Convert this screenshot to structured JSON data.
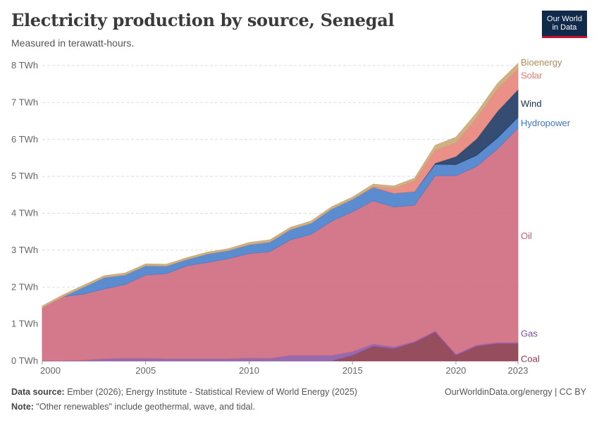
{
  "header": {
    "title": "Electricity production by source, Senegal",
    "subtitle": "Measured in terawatt-hours.",
    "logo_line1": "Our World",
    "logo_line2": "in Data"
  },
  "footer": {
    "source_label": "Data source:",
    "source_text": " Ember (2026); Energy Institute - Statistical Review of World Energy (2025)",
    "note_label": "Note:",
    "note_text": " \"Other renewables\" include geothermal, wave, and tidal.",
    "link": "OurWorldinData.org/energy | CC BY"
  },
  "chart_data": {
    "type": "area",
    "stacked": true,
    "x": [
      2000,
      2001,
      2002,
      2003,
      2004,
      2005,
      2006,
      2007,
      2008,
      2009,
      2010,
      2011,
      2012,
      2013,
      2014,
      2015,
      2016,
      2017,
      2018,
      2019,
      2020,
      2021,
      2022,
      2023
    ],
    "xlim": [
      2000,
      2023
    ],
    "ylim": [
      0,
      8
    ],
    "x_ticks": [
      {
        "value": 2000,
        "label": "2000"
      },
      {
        "value": 2005,
        "label": "2005"
      },
      {
        "value": 2010,
        "label": "2010"
      },
      {
        "value": 2015,
        "label": "2015"
      },
      {
        "value": 2020,
        "label": "2020"
      },
      {
        "value": 2023,
        "label": "2023"
      }
    ],
    "y_ticks": [
      {
        "value": 0,
        "label": "0 TWh"
      },
      {
        "value": 1,
        "label": "1 TWh"
      },
      {
        "value": 2,
        "label": "2 TWh"
      },
      {
        "value": 3,
        "label": "3 TWh"
      },
      {
        "value": 4,
        "label": "4 TWh"
      },
      {
        "value": 5,
        "label": "5 TWh"
      },
      {
        "value": 6,
        "label": "6 TWh"
      },
      {
        "value": 7,
        "label": "7 TWh"
      },
      {
        "value": 8,
        "label": "8 TWh"
      }
    ],
    "grid": true,
    "legend": "right, inline labels",
    "series": [
      {
        "name": "Coal",
        "color": "#8b3a4d",
        "values": [
          0,
          0,
          0,
          0,
          0,
          0,
          0,
          0,
          0,
          0,
          0,
          0,
          0,
          0,
          0,
          0.15,
          0.4,
          0.33,
          0.5,
          0.78,
          0.15,
          0.4,
          0.47,
          0.47
        ]
      },
      {
        "name": "Gas",
        "color": "#8a5aa6",
        "values": [
          0.01,
          0.01,
          0.02,
          0.06,
          0.07,
          0.07,
          0.06,
          0.06,
          0.06,
          0.06,
          0.08,
          0.07,
          0.15,
          0.15,
          0.15,
          0.1,
          0.06,
          0.05,
          0.03,
          0.03,
          0.03,
          0.03,
          0.03,
          0.03
        ]
      },
      {
        "name": "Oil",
        "color": "#cf6a7e",
        "values": [
          1.43,
          1.73,
          1.79,
          1.89,
          2.0,
          2.26,
          2.3,
          2.52,
          2.61,
          2.71,
          2.83,
          2.89,
          3.13,
          3.28,
          3.64,
          3.79,
          3.88,
          3.79,
          3.69,
          4.21,
          4.84,
          4.84,
          5.24,
          5.8
        ]
      },
      {
        "name": "Hydropower",
        "color": "#4a7fcb",
        "values": [
          0,
          0,
          0.19,
          0.31,
          0.26,
          0.25,
          0.21,
          0.17,
          0.23,
          0.22,
          0.24,
          0.26,
          0.28,
          0.3,
          0.33,
          0.34,
          0.36,
          0.37,
          0.37,
          0.31,
          0.3,
          0.3,
          0.3,
          0.3
        ]
      },
      {
        "name": "Wind",
        "color": "#1f3a63",
        "values": [
          0,
          0,
          0,
          0,
          0,
          0,
          0,
          0,
          0,
          0,
          0,
          0,
          0,
          0,
          0,
          0,
          0,
          0,
          0,
          0.03,
          0.22,
          0.45,
          0.72,
          0.75
        ]
      },
      {
        "name": "Solar",
        "color": "#e8847a",
        "values": [
          0,
          0,
          0,
          0,
          0,
          0,
          0,
          0,
          0,
          0,
          0,
          0,
          0,
          0,
          0,
          0,
          0.02,
          0.13,
          0.29,
          0.35,
          0.37,
          0.55,
          0.6,
          0.56
        ]
      },
      {
        "name": "Bioenergy",
        "color": "#c9a878",
        "values": [
          0.05,
          0.05,
          0.05,
          0.05,
          0.05,
          0.05,
          0.05,
          0.05,
          0.05,
          0.05,
          0.06,
          0.06,
          0.06,
          0.06,
          0.06,
          0.06,
          0.07,
          0.07,
          0.07,
          0.13,
          0.15,
          0.15,
          0.15,
          0.15
        ]
      }
    ],
    "labels": [
      {
        "name": "Bioenergy",
        "color": "#b08a5a"
      },
      {
        "name": "Solar",
        "color": "#e07a6e"
      },
      {
        "name": "Wind",
        "color": "#102a4c"
      },
      {
        "name": "Hydropower",
        "color": "#3f76c0"
      },
      {
        "name": "Oil",
        "color": "#c75c70"
      },
      {
        "name": "Gas",
        "color": "#7d4e9a"
      },
      {
        "name": "Coal",
        "color": "#8b3a4d"
      }
    ]
  }
}
